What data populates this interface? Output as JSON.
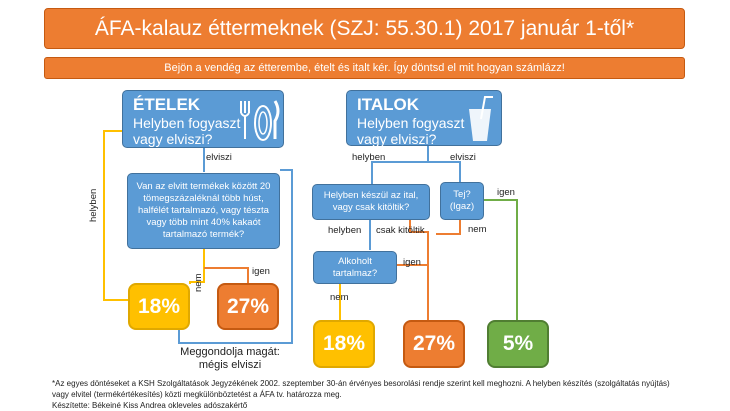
{
  "title": "ÁFA-kalauz éttermeknek (SZJ: 55.30.1) 2017 január 1-től*",
  "subtitle": "Bejön a vendég az étterembe, ételt és italt kér. Így döntsd el mit hogyan számlázz!",
  "food": {
    "title": "ÉTELEK",
    "question": "Helyben fogyaszt vagy elviszi?",
    "icon": "fork-plate-knife-icon",
    "takeaway_question": "Van az elvitt termékek között 20 tömegszázaléknál több húst, halfélét tartalmazó, vagy tészta vagy több mint 40% kakaót tartalmazó termék?",
    "label_dinein": "helyben",
    "label_takeaway": "elviszi",
    "label_no": "nem",
    "label_yes": "igen",
    "result_low": "18%",
    "result_high": "27%",
    "change_mind": "Meggondolja magát:\nmégis elviszi"
  },
  "drinks": {
    "title": "ITALOK",
    "question": "Helyben fogyaszt vagy elviszi?",
    "icon": "glass-straw-icon",
    "label_dinein": "helyben",
    "label_takeaway": "elviszi",
    "made_question": "Helyben készül az ital, vagy csak kitöltik?",
    "milk_question": "Tej? (Igaz)",
    "label_made_here": "helyben",
    "label_just_poured": "csak kitöltik",
    "label_milk_yes": "igen",
    "label_milk_no": "nem",
    "alcohol_question": "Alkoholt tartalmaz?",
    "label_alc_yes": "igen",
    "label_alc_no": "nem",
    "result_18": "18%",
    "result_27": "27%",
    "result_5": "5%"
  },
  "footnote": "*Az egyes döntéseket a KSH Szolgáltatások Jegyzékének 2002. szeptember 30-án érvényes besorolási rendje szerint kell meghozni. A helyben készítés (szolgáltatás nyújtás) vagy elvitel (termékértékesítés) közti megkülönböztetést a ÁFA tv. határozza meg.",
  "author": "Készítette: Békeiné Kiss Andrea okleveles adószakértő",
  "colors": {
    "orange": "#ed7d31",
    "blue": "#5b9bd5",
    "yellow": "#ffc000",
    "green": "#70ad47"
  }
}
